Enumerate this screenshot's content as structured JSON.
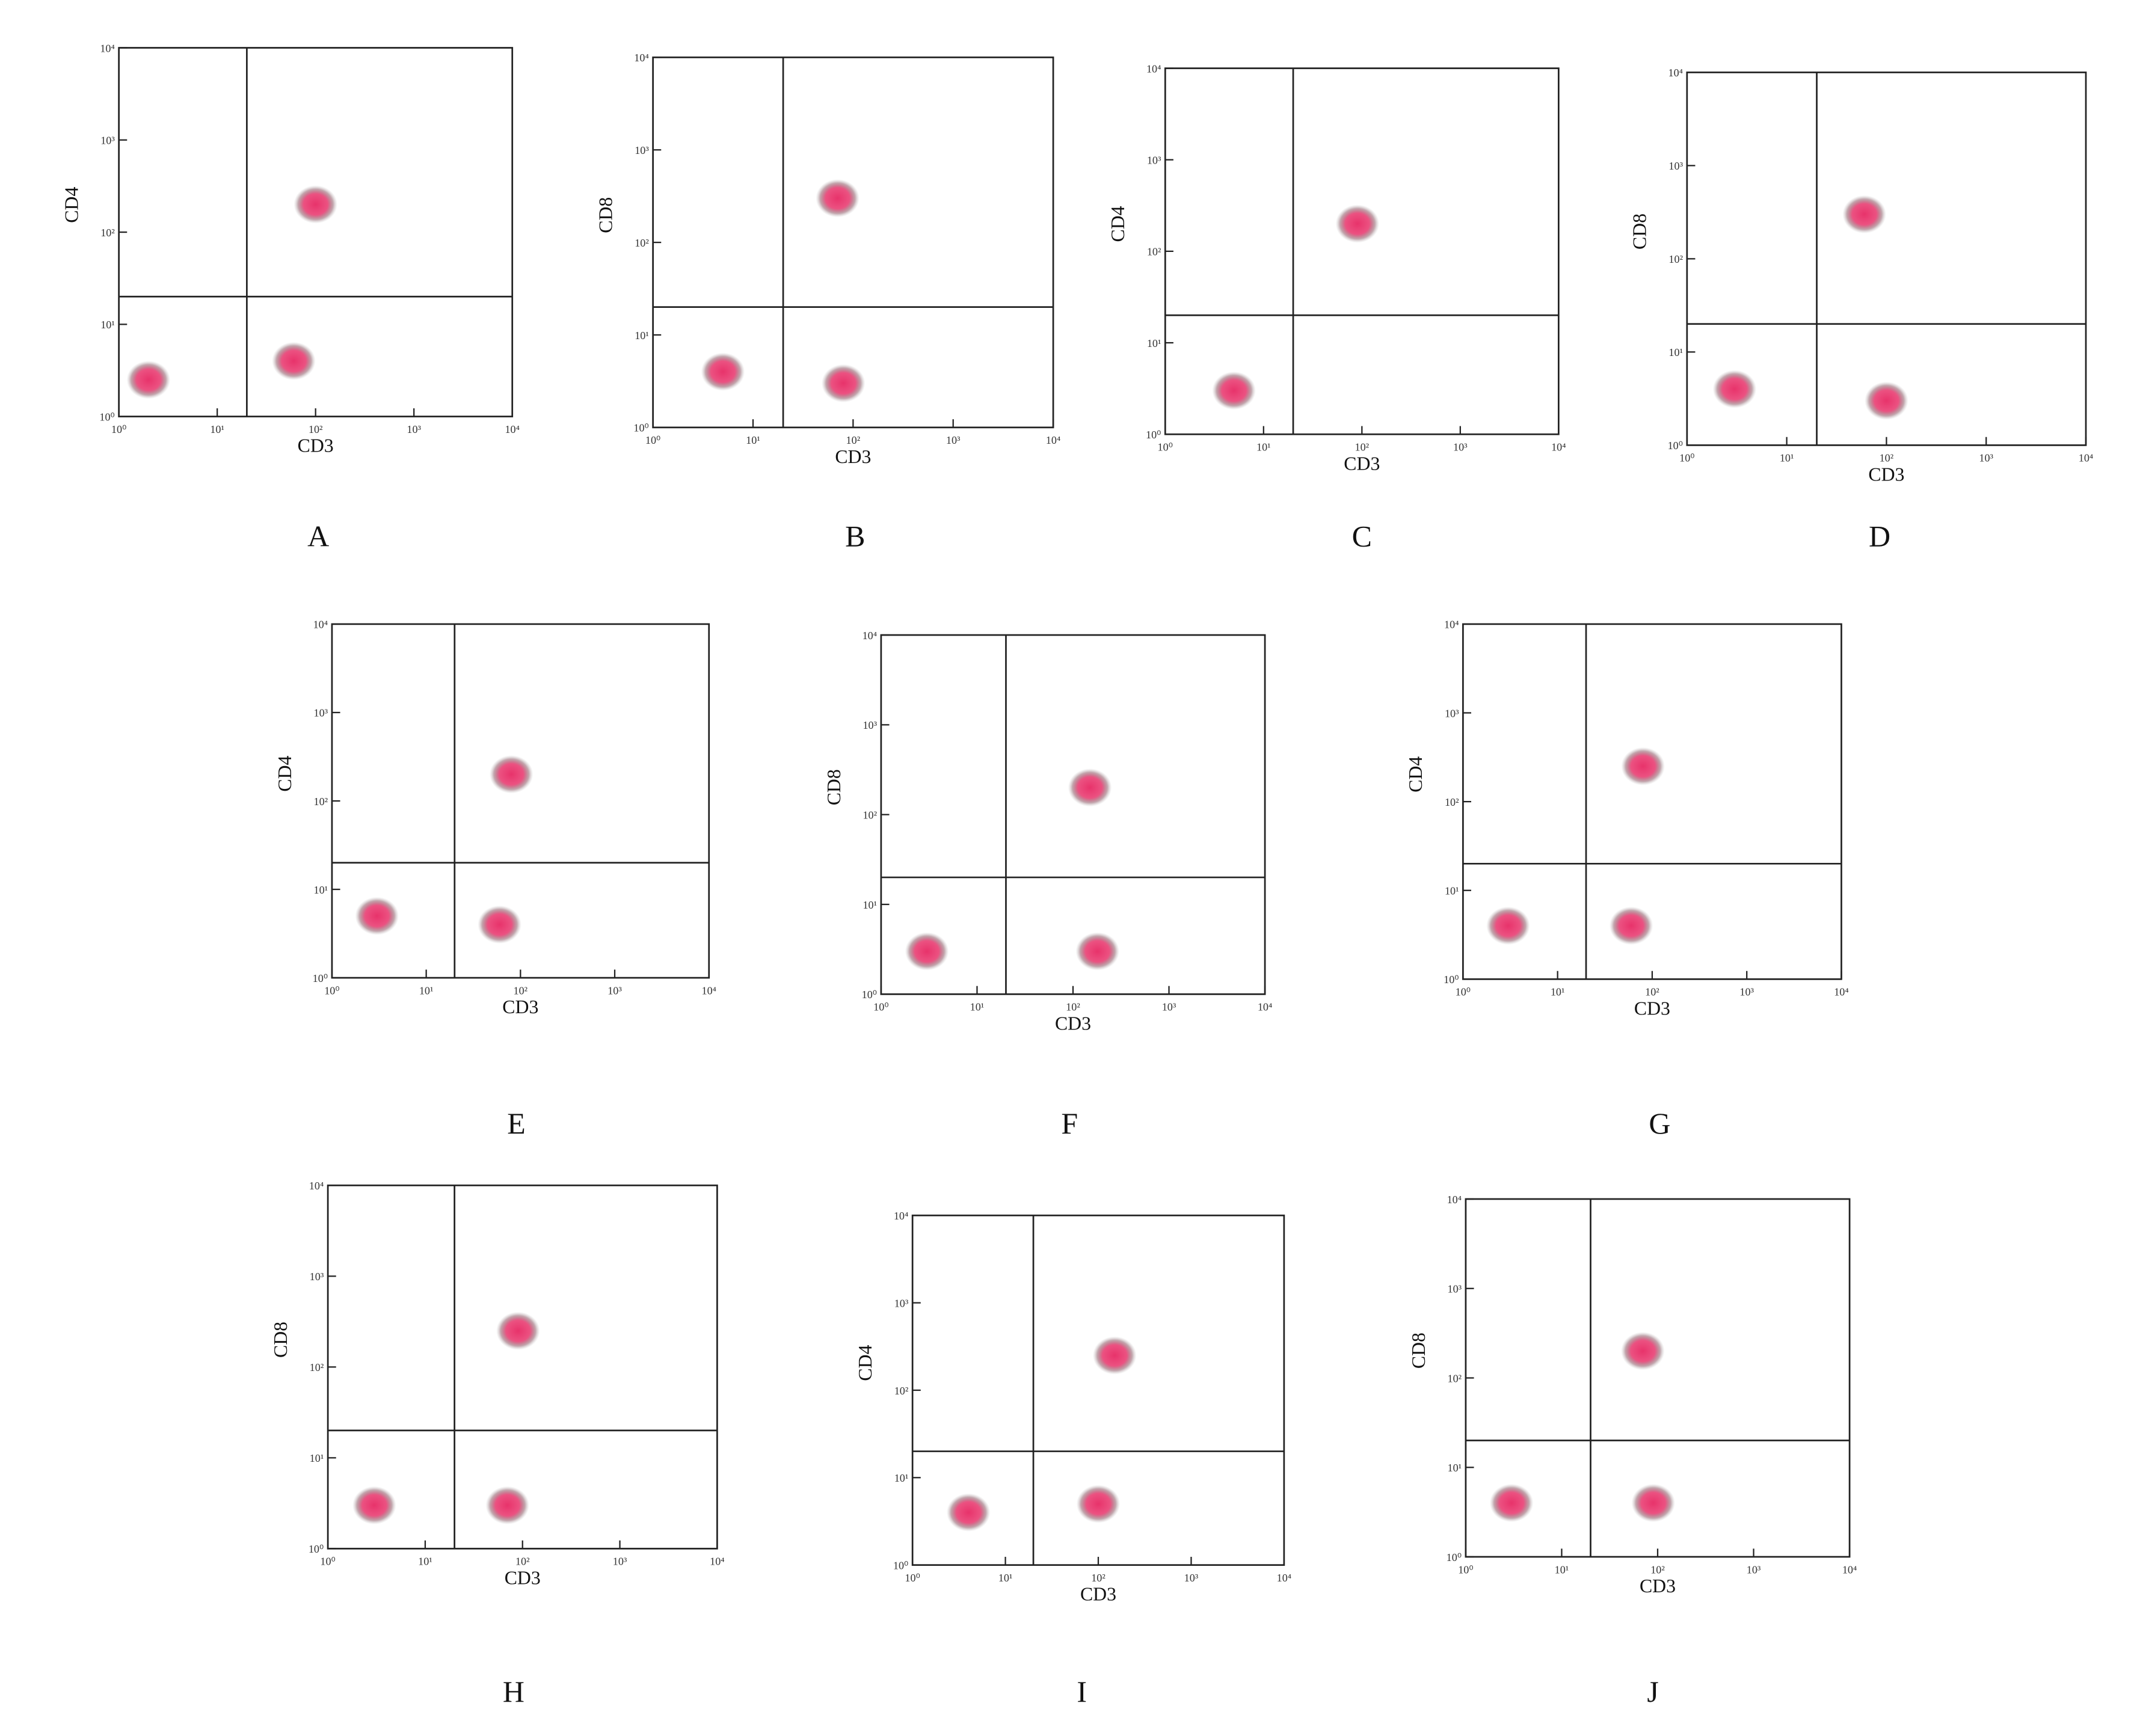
{
  "chart_data": [
    {
      "type": "scatter",
      "panel_label": "A",
      "xlabel": "CD3",
      "ylabel": "CD4",
      "x": [
        2,
        100,
        60
      ],
      "y": [
        2.5,
        200,
        4
      ],
      "color": "#e8336b",
      "log_scale": true,
      "quadrant": {
        "x": 20,
        "y": 20
      },
      "xlim": [
        1,
        10000
      ],
      "ylim": [
        1,
        10000
      ],
      "xticks": [
        {
          "value": 1,
          "label": "10⁰"
        },
        {
          "value": 10,
          "label": "10¹"
        },
        {
          "value": 100,
          "label": "10²"
        },
        {
          "value": 1000,
          "label": "10³"
        },
        {
          "value": 10000,
          "label": "10⁴"
        }
      ],
      "yticks": [
        {
          "value": 1,
          "label": "10⁰"
        },
        {
          "value": 10,
          "label": "10¹"
        },
        {
          "value": 100,
          "label": "10²"
        },
        {
          "value": 1000,
          "label": "10³"
        },
        {
          "value": 10000,
          "label": "10⁴"
        }
      ]
    },
    {
      "type": "scatter",
      "panel_label": "B",
      "xlabel": "CD3",
      "ylabel": "CD8",
      "x": [
        5,
        70,
        80
      ],
      "y": [
        4,
        300,
        3
      ],
      "color": "#e8336b",
      "log_scale": true,
      "quadrant": {
        "x": 20,
        "y": 20
      },
      "xlim": [
        1,
        10000
      ],
      "ylim": [
        1,
        10000
      ],
      "xticks": [
        {
          "value": 1,
          "label": "10⁰"
        },
        {
          "value": 10,
          "label": "10¹"
        },
        {
          "value": 100,
          "label": "10²"
        },
        {
          "value": 1000,
          "label": "10³"
        },
        {
          "value": 10000,
          "label": "10⁴"
        }
      ],
      "yticks": [
        {
          "value": 1,
          "label": "10⁰"
        },
        {
          "value": 10,
          "label": "10¹"
        },
        {
          "value": 100,
          "label": "10²"
        },
        {
          "value": 1000,
          "label": "10³"
        },
        {
          "value": 10000,
          "label": "10⁴"
        }
      ]
    },
    {
      "type": "scatter",
      "panel_label": "C",
      "xlabel": "CD3",
      "ylabel": "CD4",
      "x": [
        5,
        90
      ],
      "y": [
        3,
        200
      ],
      "color": "#e8336b",
      "log_scale": true,
      "quadrant": {
        "x": 20,
        "y": 20
      },
      "xlim": [
        1,
        10000
      ],
      "ylim": [
        1,
        10000
      ],
      "xticks": [
        {
          "value": 1,
          "label": "10⁰"
        },
        {
          "value": 10,
          "label": "10¹"
        },
        {
          "value": 100,
          "label": "10²"
        },
        {
          "value": 1000,
          "label": "10³"
        },
        {
          "value": 10000,
          "label": "10⁴"
        }
      ],
      "yticks": [
        {
          "value": 1,
          "label": "10⁰"
        },
        {
          "value": 10,
          "label": "10¹"
        },
        {
          "value": 100,
          "label": "10²"
        },
        {
          "value": 1000,
          "label": "10³"
        },
        {
          "value": 10000,
          "label": "10⁴"
        }
      ]
    },
    {
      "type": "scatter",
      "panel_label": "D",
      "xlabel": "CD3",
      "ylabel": "CD8",
      "x": [
        3,
        60,
        100
      ],
      "y": [
        4,
        300,
        3
      ],
      "color": "#e8336b",
      "log_scale": true,
      "quadrant": {
        "x": 20,
        "y": 20
      },
      "xlim": [
        1,
        10000
      ],
      "ylim": [
        1,
        10000
      ],
      "xticks": [
        {
          "value": 1,
          "label": "10⁰"
        },
        {
          "value": 10,
          "label": "10¹"
        },
        {
          "value": 100,
          "label": "10²"
        },
        {
          "value": 1000,
          "label": "10³"
        },
        {
          "value": 10000,
          "label": "10⁴"
        }
      ],
      "yticks": [
        {
          "value": 1,
          "label": "10⁰"
        },
        {
          "value": 10,
          "label": "10¹"
        },
        {
          "value": 100,
          "label": "10²"
        },
        {
          "value": 1000,
          "label": "10³"
        },
        {
          "value": 10000,
          "label": "10⁴"
        }
      ]
    },
    {
      "type": "scatter",
      "panel_label": "E",
      "xlabel": "CD3",
      "ylabel": "CD4",
      "x": [
        3,
        80,
        60
      ],
      "y": [
        5,
        200,
        4
      ],
      "color": "#e8336b",
      "log_scale": true,
      "quadrant": {
        "x": 20,
        "y": 20
      },
      "xlim": [
        1,
        10000
      ],
      "ylim": [
        1,
        10000
      ],
      "xticks": [
        {
          "value": 1,
          "label": "10⁰"
        },
        {
          "value": 10,
          "label": "10¹"
        },
        {
          "value": 100,
          "label": "10²"
        },
        {
          "value": 1000,
          "label": "10³"
        },
        {
          "value": 10000,
          "label": "10⁴"
        }
      ],
      "yticks": [
        {
          "value": 1,
          "label": "10⁰"
        },
        {
          "value": 10,
          "label": "10¹"
        },
        {
          "value": 100,
          "label": "10²"
        },
        {
          "value": 1000,
          "label": "10³"
        },
        {
          "value": 10000,
          "label": "10⁴"
        }
      ]
    },
    {
      "type": "scatter",
      "panel_label": "F",
      "xlabel": "CD3",
      "ylabel": "CD8",
      "x": [
        3,
        150,
        180
      ],
      "y": [
        3,
        200,
        3
      ],
      "color": "#e8336b",
      "log_scale": true,
      "quadrant": {
        "x": 20,
        "y": 20
      },
      "xlim": [
        1,
        10000
      ],
      "ylim": [
        1,
        10000
      ],
      "xticks": [
        {
          "value": 1,
          "label": "10⁰"
        },
        {
          "value": 10,
          "label": "10¹"
        },
        {
          "value": 100,
          "label": "10²"
        },
        {
          "value": 1000,
          "label": "10³"
        },
        {
          "value": 10000,
          "label": "10⁴"
        }
      ],
      "yticks": [
        {
          "value": 1,
          "label": "10⁰"
        },
        {
          "value": 10,
          "label": "10¹"
        },
        {
          "value": 100,
          "label": "10²"
        },
        {
          "value": 1000,
          "label": "10³"
        },
        {
          "value": 10000,
          "label": "10⁴"
        }
      ]
    },
    {
      "type": "scatter",
      "panel_label": "G",
      "xlabel": "CD3",
      "ylabel": "CD4",
      "x": [
        3,
        80,
        60
      ],
      "y": [
        4,
        250,
        4
      ],
      "color": "#e8336b",
      "log_scale": true,
      "quadrant": {
        "x": 20,
        "y": 20
      },
      "xlim": [
        1,
        10000
      ],
      "ylim": [
        1,
        10000
      ],
      "xticks": [
        {
          "value": 1,
          "label": "10⁰"
        },
        {
          "value": 10,
          "label": "10¹"
        },
        {
          "value": 100,
          "label": "10²"
        },
        {
          "value": 1000,
          "label": "10³"
        },
        {
          "value": 10000,
          "label": "10⁴"
        }
      ],
      "yticks": [
        {
          "value": 1,
          "label": "10⁰"
        },
        {
          "value": 10,
          "label": "10¹"
        },
        {
          "value": 100,
          "label": "10²"
        },
        {
          "value": 1000,
          "label": "10³"
        },
        {
          "value": 10000,
          "label": "10⁴"
        }
      ]
    },
    {
      "type": "scatter",
      "panel_label": "H",
      "xlabel": "CD3",
      "ylabel": "CD8",
      "x": [
        3,
        90,
        70
      ],
      "y": [
        3,
        250,
        3
      ],
      "color": "#e8336b",
      "log_scale": true,
      "quadrant": {
        "x": 20,
        "y": 20
      },
      "xlim": [
        1,
        10000
      ],
      "ylim": [
        1,
        10000
      ],
      "xticks": [
        {
          "value": 1,
          "label": "10⁰"
        },
        {
          "value": 10,
          "label": "10¹"
        },
        {
          "value": 100,
          "label": "10²"
        },
        {
          "value": 1000,
          "label": "10³"
        },
        {
          "value": 10000,
          "label": "10⁴"
        }
      ],
      "yticks": [
        {
          "value": 1,
          "label": "10⁰"
        },
        {
          "value": 10,
          "label": "10¹"
        },
        {
          "value": 100,
          "label": "10²"
        },
        {
          "value": 1000,
          "label": "10³"
        },
        {
          "value": 10000,
          "label": "10⁴"
        }
      ]
    },
    {
      "type": "scatter",
      "panel_label": "I",
      "xlabel": "CD3",
      "ylabel": "CD4",
      "x": [
        4,
        150,
        100
      ],
      "y": [
        4,
        250,
        5
      ],
      "color": "#e8336b",
      "log_scale": true,
      "quadrant": {
        "x": 20,
        "y": 20
      },
      "xlim": [
        1,
        10000
      ],
      "ylim": [
        1,
        10000
      ],
      "xticks": [
        {
          "value": 1,
          "label": "10⁰"
        },
        {
          "value": 10,
          "label": "10¹"
        },
        {
          "value": 100,
          "label": "10²"
        },
        {
          "value": 1000,
          "label": "10³"
        },
        {
          "value": 10000,
          "label": "10⁴"
        }
      ],
      "yticks": [
        {
          "value": 1,
          "label": "10⁰"
        },
        {
          "value": 10,
          "label": "10¹"
        },
        {
          "value": 100,
          "label": "10²"
        },
        {
          "value": 1000,
          "label": "10³"
        },
        {
          "value": 10000,
          "label": "10⁴"
        }
      ]
    },
    {
      "type": "scatter",
      "panel_label": "J",
      "xlabel": "CD3",
      "ylabel": "CD8",
      "x": [
        3,
        70,
        90
      ],
      "y": [
        4,
        200,
        4
      ],
      "color": "#e8336b",
      "log_scale": true,
      "quadrant": {
        "x": 20,
        "y": 20
      },
      "xlim": [
        1,
        10000
      ],
      "ylim": [
        1,
        10000
      ],
      "xticks": [
        {
          "value": 1,
          "label": "10⁰"
        },
        {
          "value": 10,
          "label": "10¹"
        },
        {
          "value": 100,
          "label": "10²"
        },
        {
          "value": 1000,
          "label": "10³"
        },
        {
          "value": 10000,
          "label": "10⁴"
        }
      ],
      "yticks": [
        {
          "value": 1,
          "label": "10⁰"
        },
        {
          "value": 10,
          "label": "10¹"
        },
        {
          "value": 100,
          "label": "10²"
        },
        {
          "value": 1000,
          "label": "10³"
        },
        {
          "value": 10000,
          "label": "10⁴"
        }
      ]
    }
  ]
}
